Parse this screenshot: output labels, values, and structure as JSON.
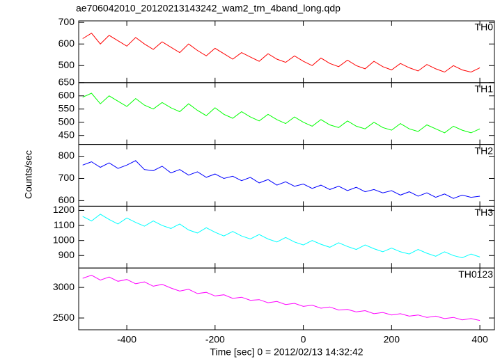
{
  "chart_data": [
    {
      "type": "line",
      "title": "ae706042010_20120213143242_wam2_trn_4band_long.qdp",
      "x": [
        -500,
        -480,
        -460,
        -440,
        -420,
        -400,
        -380,
        -360,
        -340,
        -320,
        -300,
        -280,
        -260,
        -240,
        -220,
        -200,
        -180,
        -160,
        -140,
        -120,
        -100,
        -80,
        -60,
        -40,
        -20,
        0,
        20,
        40,
        60,
        80,
        100,
        120,
        140,
        160,
        180,
        200,
        220,
        240,
        260,
        280,
        300,
        320,
        340,
        360,
        380,
        400
      ],
      "xlim": [
        -509,
        433
      ],
      "ylim": [
        421,
        707
      ],
      "yticks": [
        500,
        600,
        700
      ],
      "series": [
        {
          "name": "TH0",
          "color": "#ff0000",
          "values": [
            625,
            650,
            600,
            640,
            615,
            590,
            630,
            600,
            575,
            610,
            585,
            560,
            600,
            570,
            545,
            580,
            555,
            530,
            560,
            540,
            520,
            555,
            530,
            515,
            545,
            520,
            500,
            535,
            510,
            495,
            525,
            500,
            485,
            520,
            495,
            480,
            510,
            490,
            475,
            505,
            485,
            470,
            500,
            480,
            470,
            490
          ]
        }
      ]
    },
    {
      "type": "line",
      "x": [
        -500,
        -480,
        -460,
        -440,
        -420,
        -400,
        -380,
        -360,
        -340,
        -320,
        -300,
        -280,
        -260,
        -240,
        -220,
        -200,
        -180,
        -160,
        -140,
        -120,
        -100,
        -80,
        -60,
        -40,
        -20,
        0,
        20,
        40,
        60,
        80,
        100,
        120,
        140,
        160,
        180,
        200,
        220,
        240,
        260,
        280,
        300,
        320,
        340,
        360,
        380,
        400
      ],
      "xlim": [
        -509,
        433
      ],
      "ylim": [
        416,
        650
      ],
      "yticks": [
        450,
        500,
        550,
        600,
        650
      ],
      "series": [
        {
          "name": "TH1",
          "color": "#00ff00",
          "values": [
            595,
            610,
            570,
            600,
            580,
            560,
            590,
            565,
            550,
            575,
            555,
            540,
            570,
            545,
            525,
            555,
            530,
            515,
            540,
            520,
            505,
            530,
            510,
            495,
            520,
            500,
            485,
            510,
            490,
            480,
            505,
            485,
            475,
            500,
            480,
            470,
            495,
            475,
            465,
            490,
            475,
            460,
            485,
            470,
            460,
            475
          ]
        }
      ]
    },
    {
      "type": "line",
      "ylabel": "Counts/sec",
      "x": [
        -500,
        -480,
        -460,
        -440,
        -420,
        -400,
        -380,
        -360,
        -340,
        -320,
        -300,
        -280,
        -260,
        -240,
        -220,
        -200,
        -180,
        -160,
        -140,
        -120,
        -100,
        -80,
        -60,
        -40,
        -20,
        0,
        20,
        40,
        60,
        80,
        100,
        120,
        140,
        160,
        180,
        200,
        220,
        240,
        260,
        280,
        300,
        320,
        340,
        360,
        380,
        400
      ],
      "xlim": [
        -509,
        433
      ],
      "ylim": [
        575,
        853
      ],
      "yticks": [
        600,
        700,
        800
      ],
      "series": [
        {
          "name": "TH2",
          "color": "#0000ff",
          "values": [
            760,
            775,
            750,
            770,
            745,
            760,
            780,
            740,
            735,
            755,
            725,
            740,
            715,
            730,
            705,
            720,
            700,
            710,
            690,
            705,
            680,
            695,
            670,
            685,
            665,
            675,
            655,
            670,
            650,
            665,
            645,
            660,
            640,
            650,
            635,
            645,
            625,
            640,
            620,
            635,
            615,
            630,
            610,
            625,
            615,
            620
          ]
        }
      ]
    },
    {
      "type": "line",
      "x": [
        -500,
        -480,
        -460,
        -440,
        -420,
        -400,
        -380,
        -360,
        -340,
        -320,
        -300,
        -280,
        -260,
        -240,
        -220,
        -200,
        -180,
        -160,
        -140,
        -120,
        -100,
        -80,
        -60,
        -40,
        -20,
        0,
        20,
        40,
        60,
        80,
        100,
        120,
        140,
        160,
        180,
        200,
        220,
        240,
        260,
        280,
        300,
        320,
        340,
        360,
        380,
        400
      ],
      "xlim": [
        -509,
        433
      ],
      "ylim": [
        817,
        1228
      ],
      "yticks": [
        900,
        1000,
        1100,
        1200
      ],
      "series": [
        {
          "name": "TH3",
          "color": "#00ffff",
          "values": [
            1160,
            1130,
            1175,
            1140,
            1110,
            1150,
            1120,
            1095,
            1130,
            1100,
            1080,
            1110,
            1070,
            1050,
            1085,
            1055,
            1030,
            1060,
            1030,
            1010,
            1040,
            1010,
            990,
            1020,
            990,
            970,
            1000,
            975,
            955,
            985,
            960,
            940,
            970,
            945,
            925,
            950,
            925,
            910,
            940,
            915,
            895,
            925,
            900,
            885,
            910,
            890
          ]
        }
      ]
    },
    {
      "type": "line",
      "xlabel": "Time [sec] 0 = 2012/02/13 14:32:42",
      "x": [
        -500,
        -480,
        -460,
        -440,
        -420,
        -400,
        -380,
        -360,
        -340,
        -320,
        -300,
        -280,
        -260,
        -240,
        -220,
        -200,
        -180,
        -160,
        -140,
        -120,
        -100,
        -80,
        -60,
        -40,
        -20,
        0,
        20,
        40,
        60,
        80,
        100,
        120,
        140,
        160,
        180,
        200,
        220,
        240,
        260,
        280,
        300,
        320,
        340,
        360,
        380,
        400
      ],
      "xlim": [
        -509,
        433
      ],
      "xticks": [
        -400,
        -200,
        0,
        200,
        400
      ],
      "ylim": [
        2307,
        3318
      ],
      "yticks": [
        2500,
        3000
      ],
      "series": [
        {
          "name": "TH0123",
          "color": "#ff00ff",
          "values": [
            3150,
            3200,
            3120,
            3170,
            3100,
            3130,
            3060,
            3090,
            3020,
            3050,
            2990,
            2940,
            2970,
            2900,
            2920,
            2860,
            2880,
            2820,
            2840,
            2790,
            2800,
            2750,
            2770,
            2720,
            2740,
            2690,
            2710,
            2660,
            2680,
            2630,
            2640,
            2600,
            2620,
            2570,
            2590,
            2550,
            2570,
            2530,
            2550,
            2510,
            2530,
            2490,
            2510,
            2470,
            2490,
            2460
          ]
        }
      ]
    }
  ]
}
